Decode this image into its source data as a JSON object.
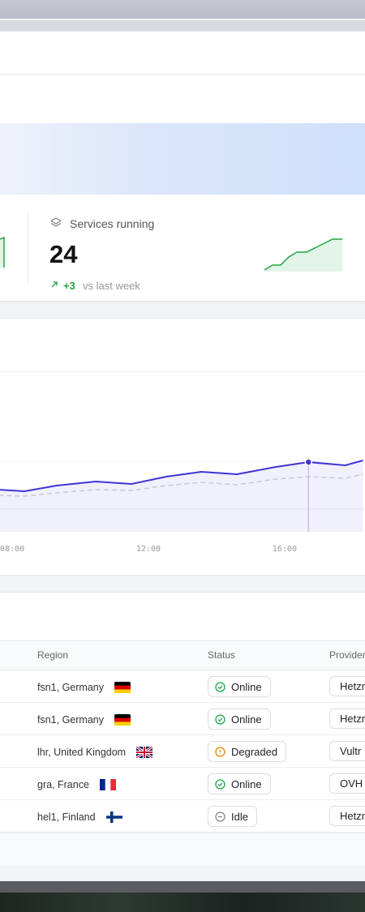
{
  "stat": {
    "label": "Services running",
    "value": 24,
    "change": "+3",
    "change_note": "vs last week"
  },
  "chart_data": {
    "type": "line",
    "x": [
      7.6,
      8.36,
      9.3,
      10.45,
      11.5,
      12.52,
      13.55,
      14.6,
      15.74,
      16.7,
      17.78,
      18.3
    ],
    "xlim": [
      7.64,
      18.36
    ],
    "xticks": [
      {
        "value": 8,
        "label": "08:00"
      },
      {
        "value": 12,
        "label": "12:00"
      },
      {
        "value": 16,
        "label": "16:00"
      }
    ],
    "ylim": [
      0,
      100
    ],
    "series": [
      {
        "color": "#3f35d4",
        "dash": false,
        "values": [
          26,
          25,
          28.5,
          31,
          29.5,
          34,
          37,
          35.5,
          40,
          43,
          41,
          44
        ]
      },
      {
        "color": "#c9c9d1",
        "dash": true,
        "values": [
          22.5,
          22,
          24,
          26,
          25.5,
          28.5,
          30.5,
          29,
          32.5,
          34,
          33,
          35.5
        ]
      }
    ],
    "highlight_x": 16.7
  },
  "table": {
    "headers": [
      "Region",
      "Status",
      "Provider"
    ],
    "rows": [
      {
        "region": "fsn1, Germany",
        "flag": "de",
        "status": "Online",
        "state": "ok",
        "provider": "Hetzner"
      },
      {
        "region": "fsn1, Germany",
        "flag": "de",
        "status": "Online",
        "state": "ok",
        "provider": "Hetzner"
      },
      {
        "region": "lhr, United Kingdom",
        "flag": "gb",
        "status": "Degraded",
        "state": "warn",
        "provider": "Vultr"
      },
      {
        "region": "gra, France",
        "flag": "fr",
        "status": "Online",
        "state": "ok",
        "provider": "OVH"
      },
      {
        "region": "hel1, Finland",
        "flag": "fi",
        "status": "Idle",
        "state": "idle",
        "provider": "Hetzner"
      }
    ]
  }
}
